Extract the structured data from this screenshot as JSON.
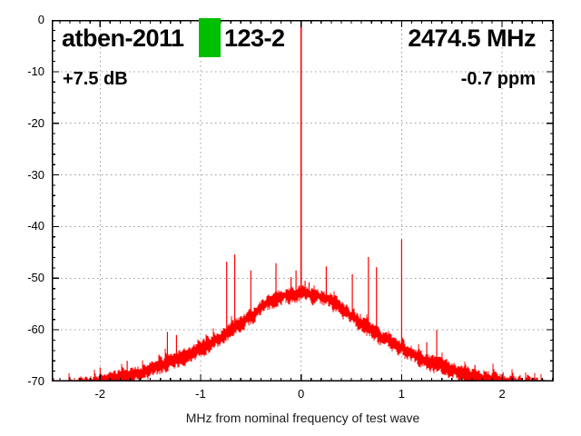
{
  "colors": {
    "trace": "#ff0000",
    "grid": "#999999",
    "axis": "#000000",
    "background": "#ffffff",
    "redaction": "#00be00"
  },
  "redaction": {
    "color": "#00be00",
    "covers": "character in title"
  },
  "chart_data": {
    "type": "line",
    "title": "",
    "xlabel": "MHz from nominal frequency of test wave",
    "ylabel": "",
    "legend": null,
    "grid": true,
    "xlim": [
      -2.481,
      2.514
    ],
    "ylim": [
      -70,
      0
    ],
    "x_major_ticks": [
      -2,
      -1,
      0,
      1,
      2
    ],
    "x_tick_labels": [
      "-2",
      "-1",
      "0",
      "1",
      "2"
    ],
    "x_minor_step": 0.1,
    "y_major_ticks": [
      0,
      -10,
      -20,
      -30,
      -40,
      -50,
      -60,
      -70
    ],
    "y_tick_labels": [
      "0",
      "-10",
      "-20",
      "-30",
      "-40",
      "-50",
      "-60",
      "-70"
    ],
    "y_minor_step": 2,
    "annotations": [
      {
        "text": "atben-2011",
        "position": "top-left"
      },
      {
        "text": "123-2",
        "position": "top-left-after-redaction"
      },
      {
        "text": "2474.5 MHz",
        "position": "top-right"
      },
      {
        "text": "+7.5 dB",
        "position": "upper-left"
      },
      {
        "text": "-0.7 ppm",
        "position": "upper-right"
      }
    ],
    "carrier": {
      "freq_mhz": 0.0,
      "peak_db": 0.0
    },
    "noise_envelope_abs_freq_db": [
      [
        0.0,
        -52.8
      ],
      [
        0.1,
        -53.2
      ],
      [
        0.2,
        -53.5
      ],
      [
        0.3,
        -54.3
      ],
      [
        0.4,
        -55.8
      ],
      [
        0.5,
        -57.2
      ],
      [
        0.6,
        -58.7
      ],
      [
        0.7,
        -60.0
      ],
      [
        0.8,
        -61.3
      ],
      [
        0.9,
        -62.5
      ],
      [
        1.0,
        -63.5
      ],
      [
        1.2,
        -65.5
      ],
      [
        1.4,
        -67.0
      ],
      [
        1.6,
        -68.3
      ],
      [
        1.8,
        -69.2
      ],
      [
        2.0,
        -69.9
      ],
      [
        2.2,
        -70.4
      ],
      [
        2.55,
        -71.5
      ]
    ],
    "spurs_freq_db": [
      [
        -2.0,
        -67.3
      ],
      [
        -1.73,
        -66.0
      ],
      [
        -1.33,
        -60.4
      ],
      [
        -1.24,
        -61.0
      ],
      [
        -0.74,
        -46.8
      ],
      [
        -0.66,
        -45.4
      ],
      [
        -0.5,
        -48.5
      ],
      [
        -0.25,
        -47.1
      ],
      [
        -0.1,
        -49.8
      ],
      [
        -0.05,
        -48.5
      ],
      [
        0.04,
        -50.5
      ],
      [
        0.08,
        -50.8
      ],
      [
        0.25,
        -47.7
      ],
      [
        0.51,
        -49.2
      ],
      [
        0.67,
        -45.9
      ],
      [
        0.75,
        -47.9
      ],
      [
        1.0,
        -42.5
      ],
      [
        1.25,
        -62.4
      ],
      [
        1.35,
        -60.0
      ],
      [
        1.73,
        -66.8
      ],
      [
        2.01,
        -68.2
      ],
      [
        2.24,
        -69.2
      ],
      [
        2.32,
        -69.4
      ]
    ],
    "noise_render": {
      "seed": 12,
      "band_up_db": 1.6,
      "band_down_db": 2.1,
      "spike_prob": 0.05
    }
  }
}
